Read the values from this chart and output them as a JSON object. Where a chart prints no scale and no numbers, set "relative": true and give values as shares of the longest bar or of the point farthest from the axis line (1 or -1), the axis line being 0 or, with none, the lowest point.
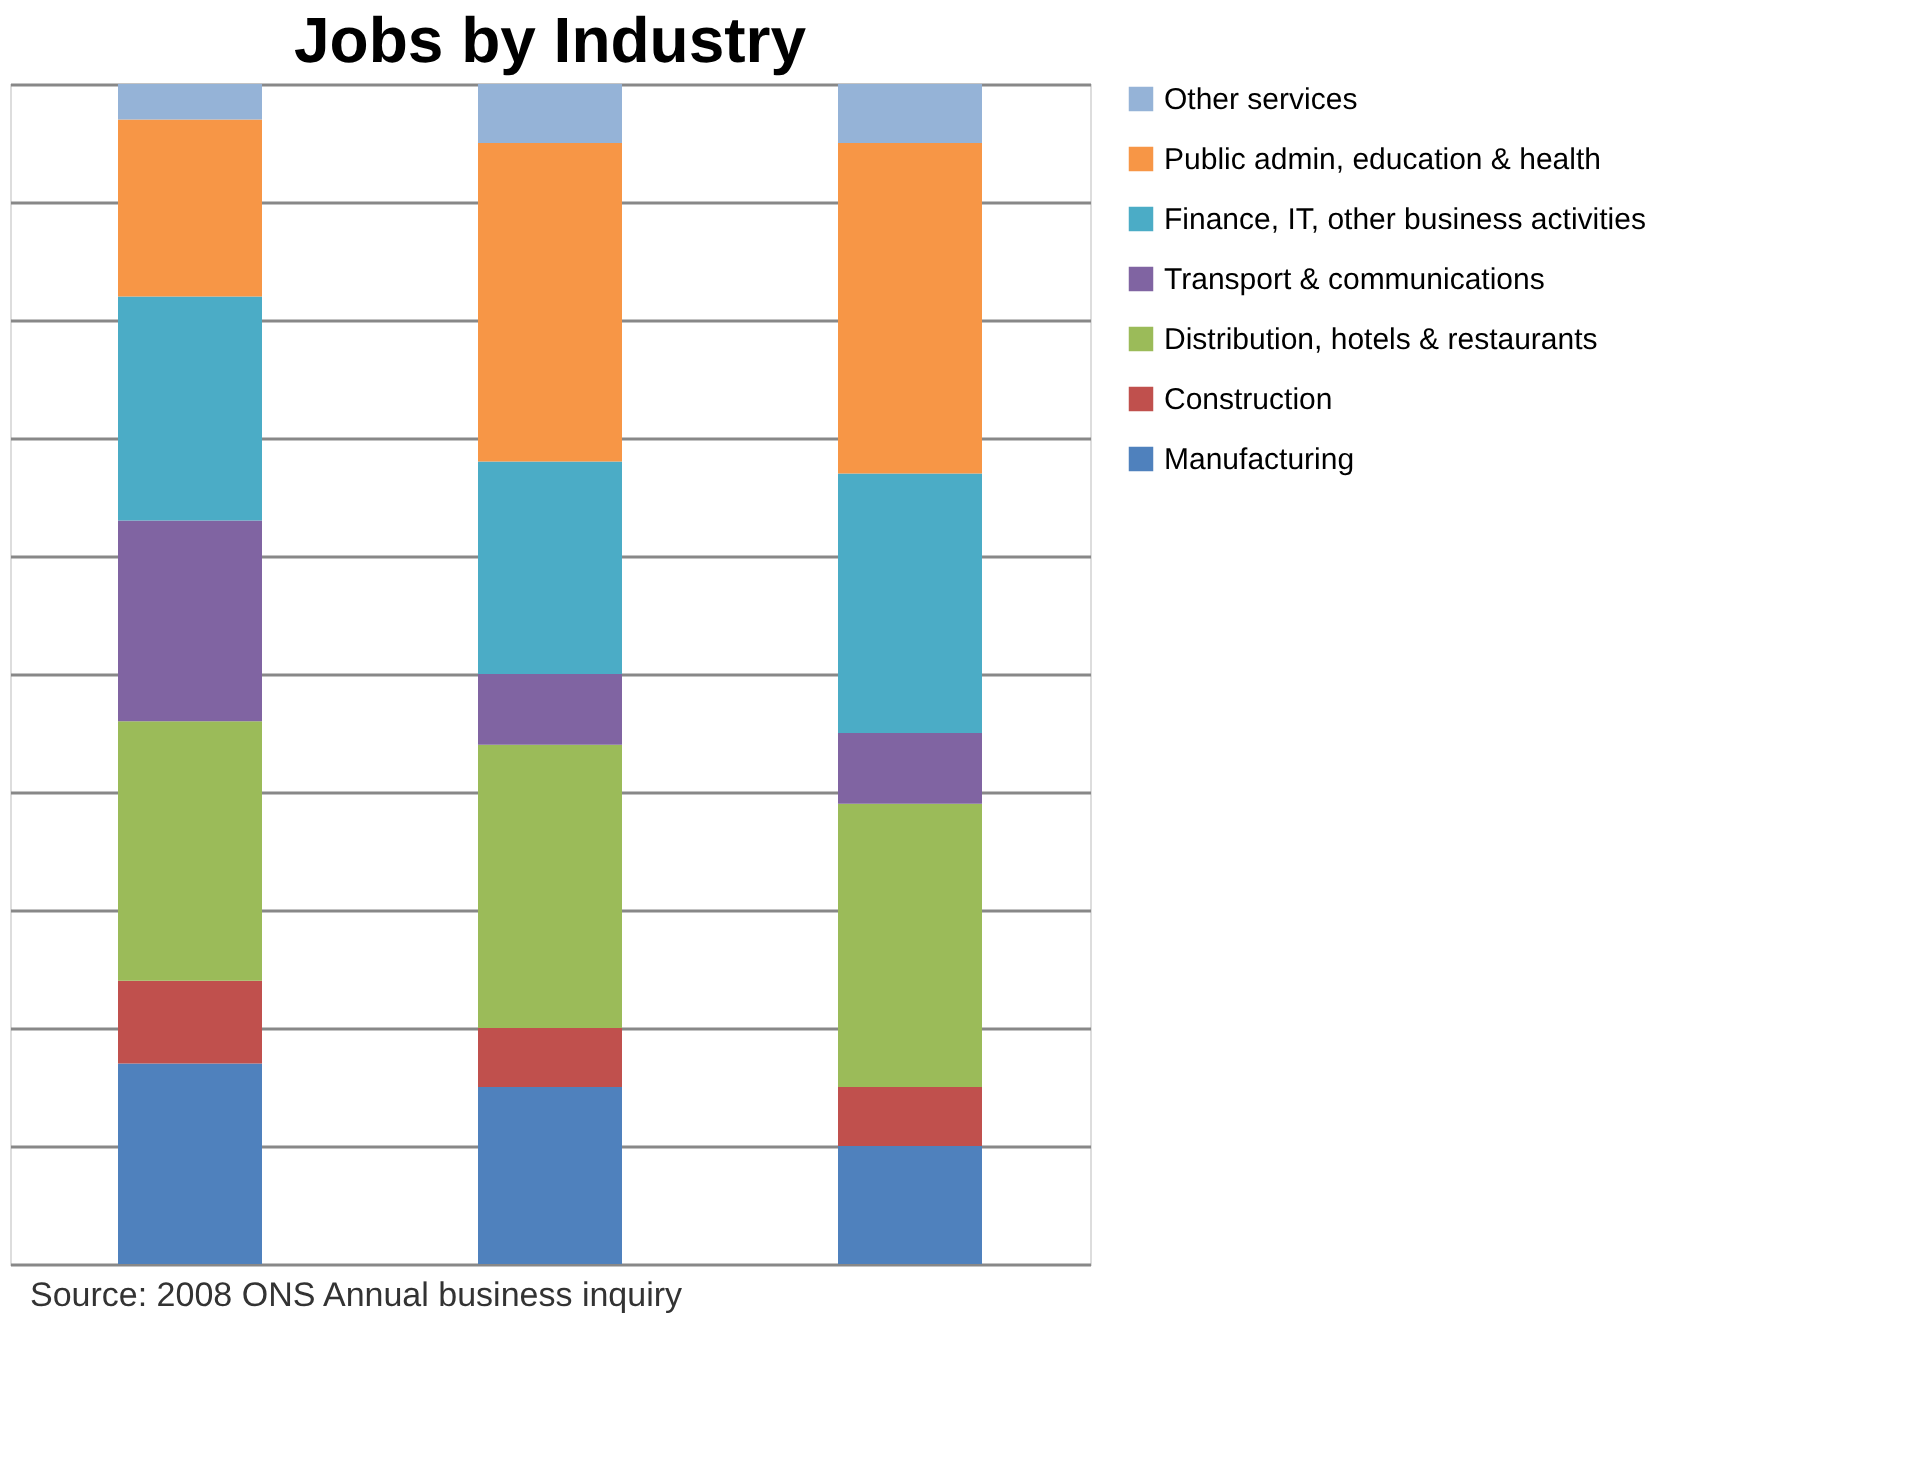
{
  "chart_data": {
    "type": "bar",
    "title": "Jobs by Industry",
    "stacked": true,
    "relative": true,
    "categories": [
      null,
      null,
      null
    ],
    "series": [
      {
        "name": "Manufacturing",
        "color": "#4f81bd",
        "values": [
          0.17,
          0.15,
          0.1
        ]
      },
      {
        "name": "Construction",
        "color": "#c0504d",
        "values": [
          0.07,
          0.05,
          0.05
        ]
      },
      {
        "name": "Distribution, hotels & restaurants",
        "color": "#9bbb59",
        "values": [
          0.22,
          0.24,
          0.24
        ]
      },
      {
        "name": "Transport & communications",
        "color": "#8064a2",
        "values": [
          0.17,
          0.06,
          0.06
        ]
      },
      {
        "name": "Finance, IT, other business activities",
        "color": "#4bacc6",
        "values": [
          0.19,
          0.18,
          0.22
        ]
      },
      {
        "name": "Public admin, education & health",
        "color": "#f79646",
        "values": [
          0.15,
          0.27,
          0.28
        ]
      },
      {
        "name": "Other services",
        "color": "#95b3d7",
        "values": [
          0.03,
          0.05,
          0.05
        ]
      }
    ],
    "legend": "right",
    "grid": "y",
    "annotations": [
      "Source: 2008 ONS Annual  business inquiry"
    ]
  }
}
